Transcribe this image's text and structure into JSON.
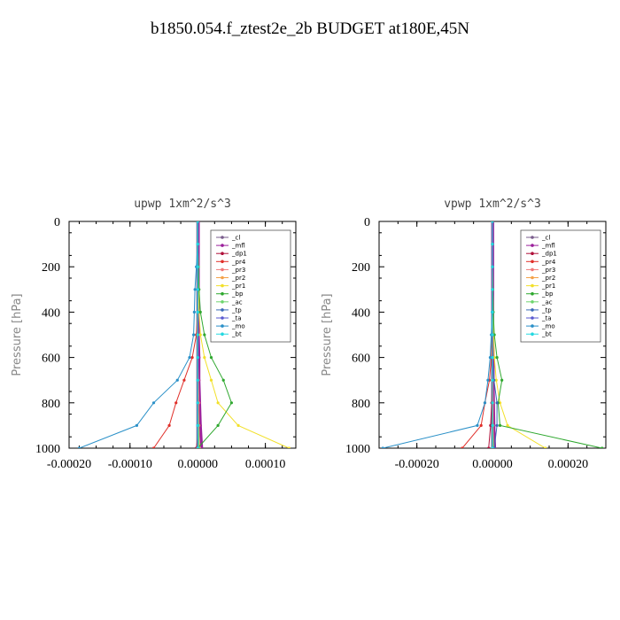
{
  "page": {
    "title": "b1850.054.f_ztest2e_2b  BUDGET at180E,45N"
  },
  "legend_entries": [
    "_cl",
    "_mfl",
    "_dp1",
    "_pr4",
    "_pr3",
    "_pr2",
    "_pr1",
    "_bp",
    "_ac",
    "_tp",
    "_ta",
    "_mo",
    "_bt"
  ],
  "colors": {
    "_cl": "#7a5c8c",
    "_mfl": "#9b1f9b",
    "_dp1": "#b0103a",
    "_pr4": "#e0302a",
    "_pr3": "#f07878",
    "_pr2": "#f4a24a",
    "_pr1": "#f2e02a",
    "_bp": "#2fa82f",
    "_ac": "#6ed66e",
    "_tp": "#3a6ab8",
    "_ta": "#5a5ad0",
    "_mo": "#2a90c8",
    "_bt": "#22d8e0"
  },
  "chart_data": [
    {
      "type": "line",
      "title": "upwp   1xm^2/s^3",
      "ylabel": "Pressure  [hPa]",
      "xlabel": "",
      "xlim": [
        -0.00019,
        0.000145
      ],
      "ylim": [
        1000,
        0
      ],
      "y_inverted": true,
      "xticks": [
        -0.0001,
        0.0,
        0.0001
      ],
      "xtick_labels": [
        "-0.00010",
        "0.00000",
        "0.00010"
      ],
      "xtick_label_start": "-0.00020",
      "yticks": [
        0,
        200,
        400,
        600,
        800,
        1000
      ],
      "ytick_labels": [
        "0",
        "200",
        "400",
        "600",
        "800",
        "1000"
      ],
      "legend_position": "top-right",
      "series": [
        {
          "name": "_cl",
          "x": [
            0,
            0,
            0,
            0,
            0,
            0,
            0,
            0,
            0,
            0,
            0
          ],
          "y": [
            0,
            100,
            200,
            300,
            400,
            500,
            600,
            700,
            800,
            900,
            1000
          ]
        },
        {
          "name": "_mfl",
          "x": [
            1e-06,
            1e-06,
            1e-06,
            1e-06,
            1e-06,
            1e-06,
            2e-06,
            2e-06,
            3e-06,
            4e-06,
            6e-06
          ],
          "y": [
            0,
            100,
            200,
            300,
            400,
            500,
            600,
            700,
            800,
            900,
            1000
          ]
        },
        {
          "name": "_dp1",
          "x": [
            0,
            0,
            0,
            0,
            0,
            0,
            0,
            0,
            1e-06,
            2e-06,
            -2e-06
          ],
          "y": [
            0,
            100,
            200,
            300,
            400,
            500,
            600,
            700,
            800,
            900,
            1000
          ]
        },
        {
          "name": "_pr4",
          "x": [
            0,
            0,
            0,
            0,
            0,
            -2e-06,
            -8e-06,
            -2e-05,
            -3.2e-05,
            -4.2e-05,
            -6.5e-05
          ],
          "y": [
            0,
            100,
            200,
            300,
            400,
            500,
            600,
            700,
            800,
            900,
            1000
          ]
        },
        {
          "name": "_pr3",
          "x": [
            0,
            0,
            0,
            0,
            0,
            0,
            0,
            1e-06,
            2e-06,
            2e-06,
            3e-06
          ],
          "y": [
            0,
            100,
            200,
            300,
            400,
            500,
            600,
            700,
            800,
            900,
            1000
          ]
        },
        {
          "name": "_pr2",
          "x": [
            0,
            0,
            0,
            0,
            0,
            0,
            0,
            0,
            0,
            1e-06,
            2e-06
          ],
          "y": [
            0,
            100,
            200,
            300,
            400,
            500,
            600,
            700,
            800,
            900,
            1000
          ]
        },
        {
          "name": "_pr1",
          "x": [
            0,
            0,
            1e-06,
            1e-06,
            2e-06,
            4e-06,
            1e-05,
            2e-05,
            3e-05,
            6e-05,
            0.000135
          ],
          "y": [
            0,
            100,
            200,
            300,
            400,
            500,
            600,
            700,
            800,
            900,
            1000
          ]
        },
        {
          "name": "_bp",
          "x": [
            0,
            0,
            1e-06,
            2e-06,
            4e-06,
            1e-05,
            2e-05,
            3.8e-05,
            5e-05,
            3e-05,
            0.0
          ],
          "y": [
            0,
            100,
            200,
            300,
            400,
            500,
            600,
            700,
            800,
            900,
            1000
          ]
        },
        {
          "name": "_ac",
          "x": [
            0,
            0,
            0,
            0,
            0,
            0,
            0,
            0,
            0,
            1e-06,
            2e-06
          ],
          "y": [
            0,
            100,
            200,
            300,
            400,
            500,
            600,
            700,
            800,
            900,
            1000
          ]
        },
        {
          "name": "_tp",
          "x": [
            0,
            0,
            0,
            0,
            0,
            0,
            0,
            0,
            0,
            0,
            0
          ],
          "y": [
            0,
            100,
            200,
            300,
            400,
            500,
            600,
            700,
            800,
            900,
            1000
          ]
        },
        {
          "name": "_ta",
          "x": [
            0,
            0,
            0,
            0,
            0,
            0,
            0,
            0,
            0,
            0,
            0
          ],
          "y": [
            0,
            100,
            200,
            300,
            400,
            500,
            600,
            700,
            800,
            900,
            1000
          ]
        },
        {
          "name": "_mo",
          "x": [
            0,
            0,
            -2e-06,
            -4e-06,
            -5e-06,
            -6e-06,
            -1.2e-05,
            -3e-05,
            -6.5e-05,
            -9e-05,
            -0.000175
          ],
          "y": [
            0,
            100,
            200,
            300,
            400,
            500,
            600,
            700,
            800,
            900,
            1000
          ]
        },
        {
          "name": "_bt",
          "x": [
            0,
            0,
            0,
            0,
            0,
            0,
            0,
            0,
            0,
            0,
            0
          ],
          "y": [
            0,
            100,
            200,
            300,
            400,
            500,
            600,
            700,
            800,
            900,
            1000
          ]
        }
      ]
    },
    {
      "type": "line",
      "title": "vpwp   1xm^2/s^3",
      "ylabel": "Pressure  [hPa]",
      "xlabel": "",
      "xlim": [
        -0.0003,
        0.0003
      ],
      "ylim": [
        1000,
        0
      ],
      "y_inverted": true,
      "xticks": [
        -0.0002,
        0.0,
        0.0002
      ],
      "xtick_labels": [
        "-0.00020",
        "0.00000",
        "0.00020"
      ],
      "yticks": [
        0,
        200,
        400,
        600,
        800,
        1000
      ],
      "ytick_labels": [
        "0",
        "200",
        "400",
        "600",
        "800",
        "1000"
      ],
      "legend_position": "top-right",
      "series": [
        {
          "name": "_cl",
          "x": [
            0,
            0,
            0,
            0,
            0,
            0,
            0,
            0,
            0,
            0,
            0
          ],
          "y": [
            0,
            100,
            200,
            300,
            400,
            500,
            600,
            700,
            800,
            900,
            1000
          ]
        },
        {
          "name": "_mfl",
          "x": [
            1e-06,
            1e-06,
            1e-06,
            1e-06,
            1e-06,
            1e-06,
            2e-06,
            2e-06,
            3e-06,
            4e-06,
            6e-06
          ],
          "y": [
            0,
            100,
            200,
            300,
            400,
            500,
            600,
            700,
            800,
            900,
            1000
          ]
        },
        {
          "name": "_dp1",
          "x": [
            0,
            0,
            0,
            0,
            0,
            0,
            0,
            0,
            -2e-06,
            -5e-06,
            -1e-05
          ],
          "y": [
            0,
            100,
            200,
            300,
            400,
            500,
            600,
            700,
            800,
            900,
            1000
          ]
        },
        {
          "name": "_pr4",
          "x": [
            0,
            0,
            0,
            0,
            0,
            0,
            -3e-06,
            -8e-06,
            -2e-05,
            -3e-05,
            -8e-05
          ],
          "y": [
            0,
            100,
            200,
            300,
            400,
            500,
            600,
            700,
            800,
            900,
            1000
          ]
        },
        {
          "name": "_pr3",
          "x": [
            0,
            0,
            0,
            0,
            0,
            0,
            0,
            1e-06,
            2e-06,
            2e-06,
            3e-06
          ],
          "y": [
            0,
            100,
            200,
            300,
            400,
            500,
            600,
            700,
            800,
            900,
            1000
          ]
        },
        {
          "name": "_pr2",
          "x": [
            0,
            0,
            0,
            0,
            0,
            0,
            0,
            0,
            0,
            1e-06,
            2e-06
          ],
          "y": [
            0,
            100,
            200,
            300,
            400,
            500,
            600,
            700,
            800,
            900,
            1000
          ]
        },
        {
          "name": "_pr1",
          "x": [
            0,
            0,
            0,
            1e-06,
            2e-06,
            3e-06,
            5e-06,
            1e-05,
            2e-05,
            4e-05,
            0.00014
          ],
          "y": [
            0,
            100,
            200,
            300,
            400,
            500,
            600,
            700,
            800,
            900,
            1000
          ]
        },
        {
          "name": "_bp",
          "x": [
            0,
            0,
            0,
            1e-06,
            2e-06,
            5e-06,
            1.2e-05,
            2.5e-05,
            1.5e-05,
            2e-05,
            0.00029
          ],
          "y": [
            0,
            100,
            200,
            300,
            400,
            500,
            600,
            700,
            800,
            900,
            1000
          ]
        },
        {
          "name": "_ac",
          "x": [
            0,
            0,
            0,
            0,
            0,
            0,
            0,
            0,
            0,
            1e-06,
            2e-06
          ],
          "y": [
            0,
            100,
            200,
            300,
            400,
            500,
            600,
            700,
            800,
            900,
            1000
          ]
        },
        {
          "name": "_tp",
          "x": [
            0,
            0,
            0,
            0,
            0,
            0,
            0,
            4e-06,
            1.2e-05,
            1.2e-05,
            5e-06
          ],
          "y": [
            0,
            100,
            200,
            300,
            400,
            500,
            600,
            700,
            800,
            900,
            1000
          ]
        },
        {
          "name": "_ta",
          "x": [
            0,
            0,
            0,
            0,
            0,
            0,
            0,
            0,
            0,
            0,
            0
          ],
          "y": [
            0,
            100,
            200,
            300,
            400,
            500,
            600,
            700,
            800,
            900,
            1000
          ]
        },
        {
          "name": "_mo",
          "x": [
            0,
            0,
            0,
            0,
            -1e-06,
            -3e-06,
            -6e-06,
            -1.2e-05,
            -2e-05,
            -4e-05,
            -0.00029
          ],
          "y": [
            0,
            100,
            200,
            300,
            400,
            500,
            600,
            700,
            800,
            900,
            1000
          ]
        },
        {
          "name": "_bt",
          "x": [
            0,
            0,
            0,
            0,
            0,
            0,
            0,
            0,
            0,
            0,
            0
          ],
          "y": [
            0,
            100,
            200,
            300,
            400,
            500,
            600,
            700,
            800,
            900,
            1000
          ]
        }
      ]
    }
  ]
}
